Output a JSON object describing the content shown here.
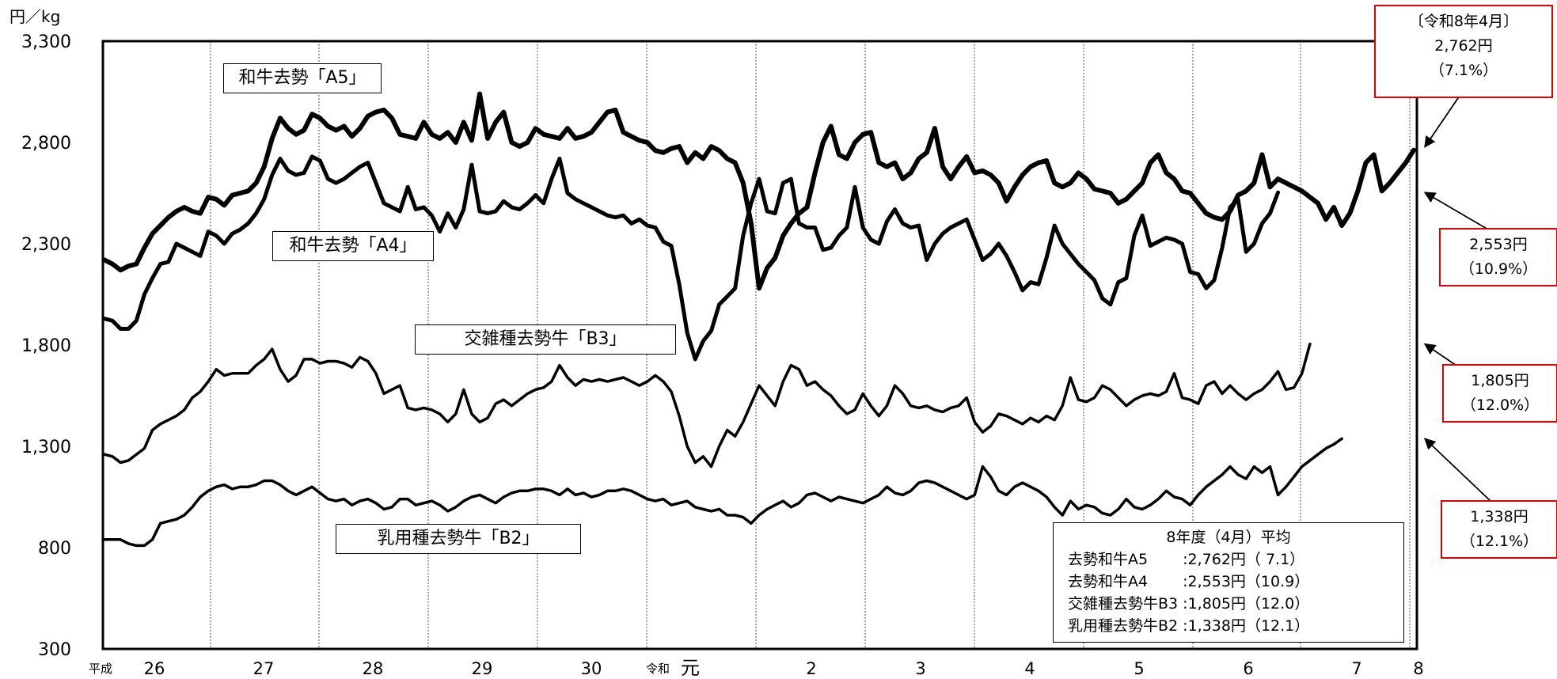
{
  "chart_data": {
    "type": "line",
    "yunit": "円／kg",
    "ylim": [
      300,
      3300
    ],
    "yticks": [
      "3,300",
      "2,800",
      "2,300",
      "1,800",
      "1,300",
      "800",
      "300"
    ],
    "grid": "vertical dotted lines at year boundaries",
    "x_era_labels": [
      "平成",
      "令和"
    ],
    "x_year_labels": [
      "26",
      "27",
      "28",
      "29",
      "30",
      "元",
      "2",
      "3",
      "4",
      "5",
      "6",
      "7",
      "8"
    ],
    "series": [
      {
        "name": "和牛去勢「A5」",
        "values": [
          2220,
          2200,
          2170,
          2190,
          2200,
          2280,
          2350,
          2390,
          2430,
          2460,
          2480,
          2460,
          2450,
          2530,
          2520,
          2490,
          2540,
          2550,
          2560,
          2600,
          2680,
          2820,
          2920,
          2870,
          2840,
          2860,
          2940,
          2920,
          2880,
          2860,
          2880,
          2830,
          2870,
          2930,
          2950,
          2960,
          2920,
          2840,
          2830,
          2820,
          2900,
          2840,
          2820,
          2850,
          2800,
          2900,
          2810,
          3040,
          2820,
          2900,
          2950,
          2800,
          2780,
          2800,
          2870,
          2840,
          2830,
          2820,
          2870,
          2820,
          2830,
          2850,
          2900,
          2950,
          2960,
          2850,
          2830,
          2810,
          2800,
          2760,
          2750,
          2770,
          2780,
          2700,
          2750,
          2720,
          2780,
          2760,
          2720,
          2700,
          2600,
          2400,
          2080,
          2180,
          2230,
          2340,
          2400,
          2450,
          2480,
          2650,
          2800,
          2880,
          2740,
          2720,
          2800,
          2840,
          2850,
          2700,
          2680,
          2700,
          2620,
          2650,
          2720,
          2750,
          2870,
          2680,
          2620,
          2680,
          2730,
          2650,
          2660,
          2640,
          2600,
          2510,
          2580,
          2640,
          2680,
          2700,
          2710,
          2600,
          2580,
          2600,
          2650,
          2620,
          2570,
          2560,
          2550,
          2500,
          2520,
          2560,
          2600,
          2700,
          2740,
          2650,
          2620,
          2560,
          2550,
          2500,
          2450,
          2430,
          2420,
          2460,
          2540,
          2560,
          2600,
          2740,
          2580,
          2620,
          2600,
          2580,
          2560,
          2530,
          2500,
          2420,
          2480,
          2390,
          2450,
          2560,
          2700,
          2740,
          2560,
          2600,
          2650,
          2700,
          2762
        ]
      },
      {
        "name": "和牛去勢「A4」",
        "values": [
          1930,
          1920,
          1880,
          1880,
          1920,
          2050,
          2130,
          2200,
          2210,
          2300,
          2280,
          2260,
          2240,
          2360,
          2340,
          2300,
          2350,
          2370,
          2400,
          2450,
          2520,
          2640,
          2720,
          2660,
          2640,
          2650,
          2730,
          2710,
          2620,
          2600,
          2620,
          2650,
          2680,
          2700,
          2600,
          2500,
          2480,
          2460,
          2580,
          2470,
          2480,
          2440,
          2360,
          2450,
          2380,
          2470,
          2690,
          2460,
          2450,
          2460,
          2510,
          2480,
          2470,
          2500,
          2540,
          2500,
          2620,
          2720,
          2550,
          2520,
          2500,
          2480,
          2460,
          2440,
          2430,
          2440,
          2400,
          2420,
          2390,
          2380,
          2310,
          2290,
          2100,
          1860,
          1730,
          1820,
          1870,
          2000,
          2040,
          2080,
          2340,
          2500,
          2620,
          2460,
          2450,
          2600,
          2620,
          2400,
          2380,
          2380,
          2270,
          2280,
          2340,
          2380,
          2580,
          2380,
          2320,
          2300,
          2410,
          2470,
          2400,
          2380,
          2390,
          2220,
          2300,
          2350,
          2380,
          2400,
          2420,
          2320,
          2220,
          2250,
          2300,
          2240,
          2160,
          2070,
          2110,
          2100,
          2230,
          2390,
          2300,
          2250,
          2200,
          2160,
          2120,
          2030,
          2000,
          2110,
          2130,
          2340,
          2440,
          2290,
          2310,
          2330,
          2320,
          2300,
          2160,
          2150,
          2080,
          2120,
          2280,
          2480,
          2520,
          2260,
          2300,
          2400,
          2450,
          2553
        ]
      },
      {
        "name": "交雑種去勢牛「B3」",
        "values": [
          1260,
          1250,
          1220,
          1230,
          1260,
          1290,
          1380,
          1410,
          1430,
          1450,
          1480,
          1540,
          1570,
          1620,
          1680,
          1650,
          1660,
          1660,
          1660,
          1700,
          1730,
          1780,
          1680,
          1620,
          1650,
          1730,
          1730,
          1710,
          1720,
          1720,
          1710,
          1690,
          1740,
          1720,
          1660,
          1560,
          1580,
          1600,
          1490,
          1480,
          1490,
          1480,
          1460,
          1420,
          1460,
          1580,
          1460,
          1420,
          1440,
          1510,
          1530,
          1500,
          1530,
          1560,
          1580,
          1590,
          1620,
          1700,
          1640,
          1600,
          1630,
          1620,
          1630,
          1620,
          1630,
          1640,
          1620,
          1600,
          1620,
          1650,
          1620,
          1570,
          1450,
          1300,
          1220,
          1250,
          1200,
          1300,
          1380,
          1350,
          1420,
          1510,
          1600,
          1550,
          1500,
          1620,
          1700,
          1680,
          1600,
          1620,
          1580,
          1550,
          1500,
          1460,
          1480,
          1560,
          1500,
          1450,
          1500,
          1600,
          1560,
          1500,
          1490,
          1500,
          1480,
          1470,
          1490,
          1500,
          1540,
          1420,
          1370,
          1400,
          1460,
          1450,
          1430,
          1410,
          1440,
          1420,
          1450,
          1430,
          1500,
          1640,
          1530,
          1520,
          1540,
          1600,
          1580,
          1540,
          1500,
          1530,
          1550,
          1560,
          1550,
          1570,
          1660,
          1540,
          1530,
          1510,
          1600,
          1620,
          1560,
          1600,
          1560,
          1530,
          1560,
          1580,
          1620,
          1670,
          1580,
          1590,
          1660,
          1805
        ]
      },
      {
        "name": "乳用種去勢牛「B2」",
        "values": [
          840,
          840,
          840,
          820,
          810,
          810,
          840,
          920,
          930,
          940,
          960,
          1000,
          1050,
          1080,
          1100,
          1110,
          1090,
          1100,
          1100,
          1110,
          1130,
          1130,
          1110,
          1080,
          1060,
          1080,
          1100,
          1070,
          1040,
          1030,
          1040,
          1010,
          1030,
          1040,
          1020,
          990,
          1000,
          1040,
          1040,
          1010,
          1020,
          1030,
          1010,
          980,
          1000,
          1030,
          1050,
          1060,
          1040,
          1020,
          1050,
          1070,
          1080,
          1080,
          1090,
          1090,
          1080,
          1060,
          1090,
          1060,
          1070,
          1050,
          1060,
          1080,
          1080,
          1090,
          1080,
          1060,
          1040,
          1030,
          1040,
          1010,
          1020,
          1030,
          1000,
          990,
          980,
          990,
          960,
          960,
          950,
          920,
          960,
          990,
          1010,
          1030,
          1000,
          1020,
          1060,
          1070,
          1050,
          1030,
          1050,
          1040,
          1030,
          1020,
          1040,
          1060,
          1100,
          1070,
          1060,
          1080,
          1120,
          1130,
          1120,
          1100,
          1080,
          1060,
          1040,
          1060,
          1200,
          1150,
          1080,
          1060,
          1100,
          1120,
          1100,
          1080,
          1050,
          1000,
          960,
          1030,
          990,
          1010,
          1000,
          970,
          960,
          990,
          1040,
          1000,
          990,
          1010,
          1040,
          1080,
          1050,
          1040,
          1010,
          1060,
          1100,
          1130,
          1160,
          1200,
          1160,
          1140,
          1200,
          1170,
          1200,
          1060,
          1100,
          1150,
          1200,
          1230,
          1260,
          1290,
          1310,
          1338
        ]
      }
    ],
    "series_labels": [
      "和牛去勢「A5」",
      "和牛去勢「A4」",
      "交雑種去勢牛「B3」",
      "乳用種去勢牛「B2」"
    ],
    "callouts": [
      {
        "lines": [
          "〔令和8年4月〕",
          "2,762円",
          "（7.1%）"
        ]
      },
      {
        "lines": [
          "2,553円",
          "（10.9%）"
        ]
      },
      {
        "lines": [
          "1,805円",
          "（12.0%）"
        ]
      },
      {
        "lines": [
          "1,338円",
          "（12.1%）"
        ]
      }
    ],
    "summary_box": {
      "title": "8年度（4月）平均",
      "rows": [
        "去勢和牛A5　 　:2,762円（ 7.1）",
        "去勢和牛A4　 　:2,553円（10.9）",
        "交雑種去勢牛B3 :1,805円（12.0）",
        "乳用種去勢牛B2 :1,338円（12.1）"
      ]
    }
  }
}
